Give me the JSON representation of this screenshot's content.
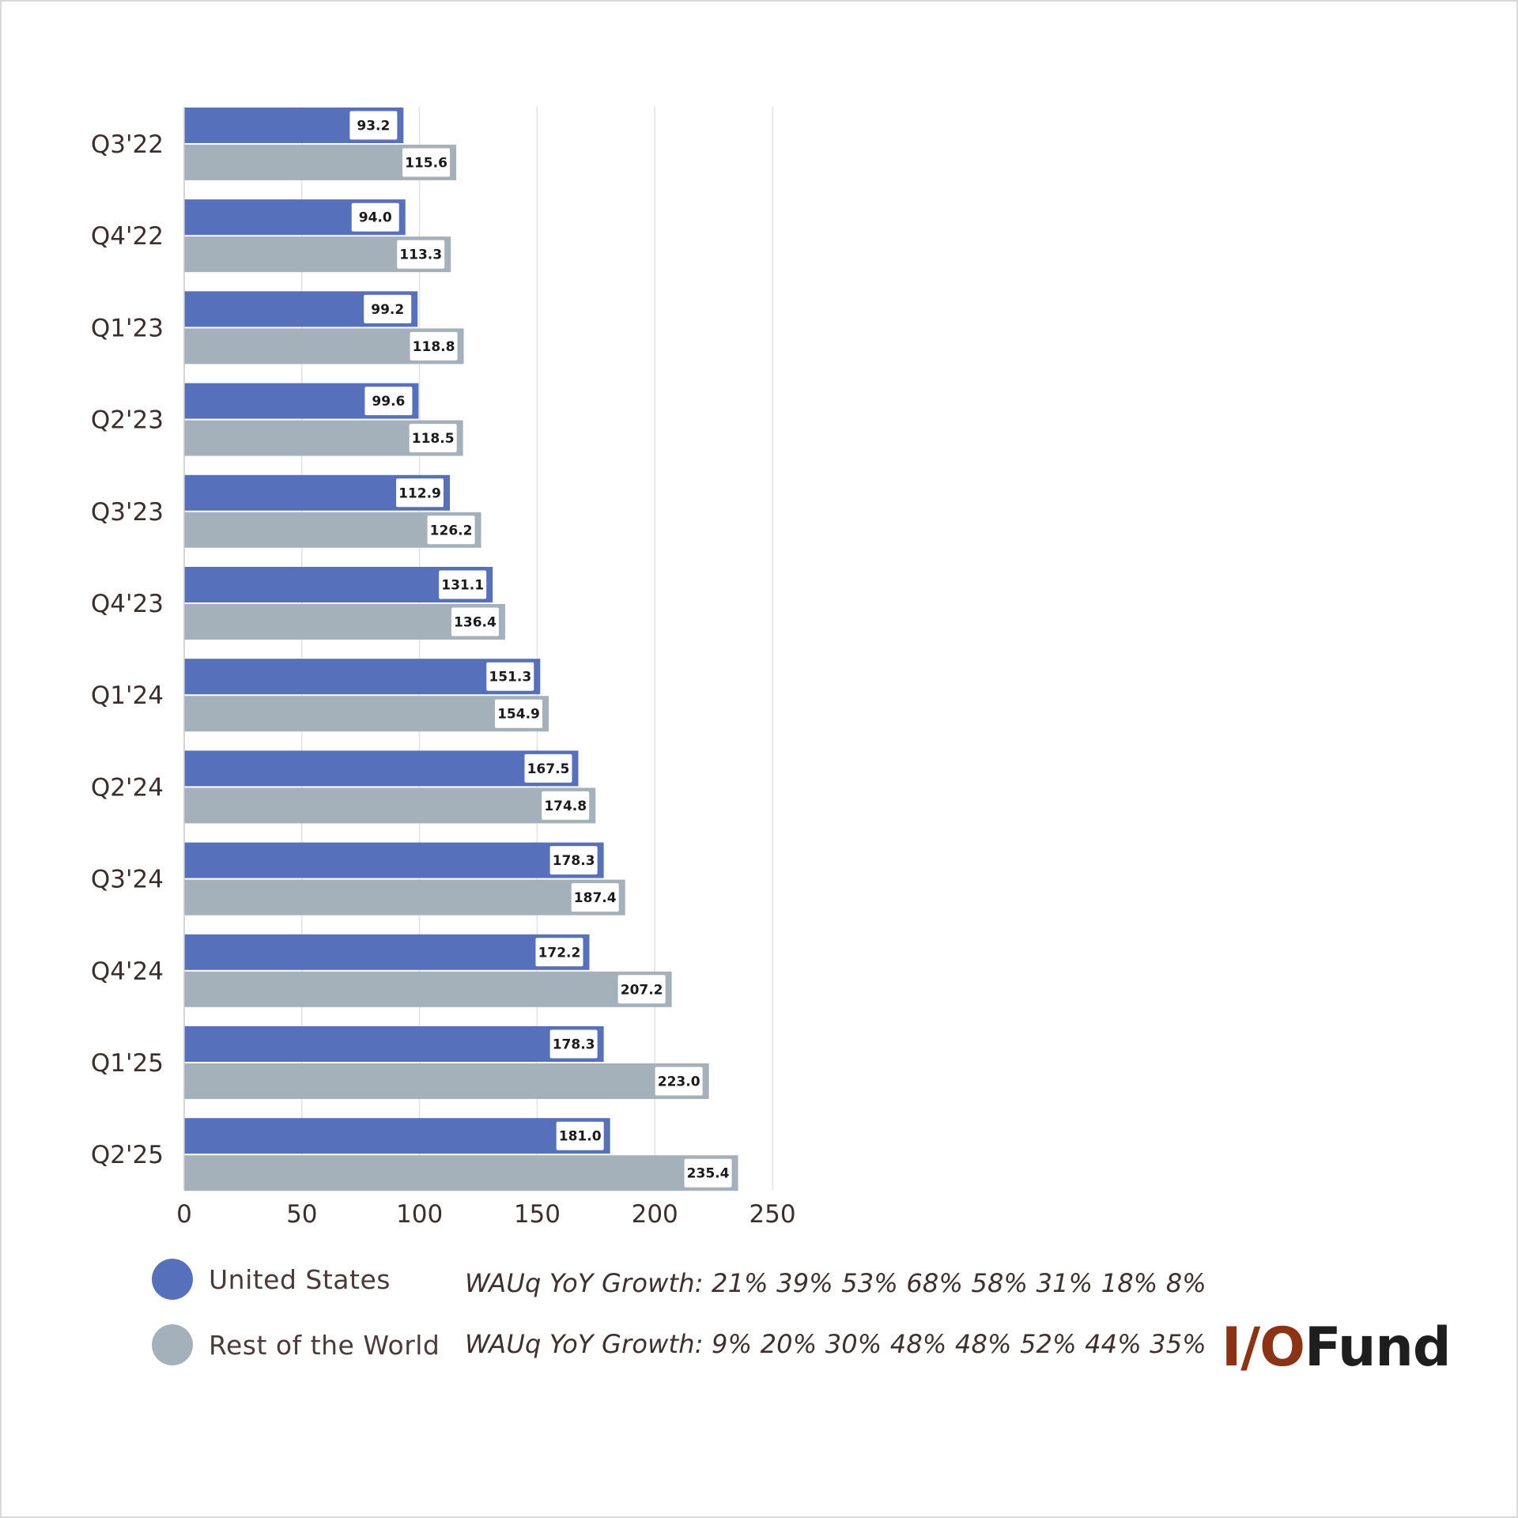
{
  "chart_data": {
    "type": "bar",
    "orientation": "horizontal",
    "categories": [
      "Q3'22",
      "Q4'22",
      "Q1'23",
      "Q2'23",
      "Q3'23",
      "Q4'23",
      "Q1'24",
      "Q2'24",
      "Q3'24",
      "Q4'24",
      "Q1'25",
      "Q2'25"
    ],
    "series": [
      {
        "name": "United States",
        "color": "#5670bb",
        "values": [
          93.2,
          94.0,
          99.2,
          99.6,
          112.9,
          131.1,
          151.3,
          167.5,
          178.3,
          172.2,
          178.3,
          181.0
        ],
        "labels": [
          "93.2",
          "94.0",
          "99.2",
          "99.6",
          "112.9",
          "131.1",
          "151.3",
          "167.5",
          "178.3",
          "172.2",
          "178.3",
          "181.0"
        ]
      },
      {
        "name": "Rest of the World",
        "color": "#a5b1ba",
        "values": [
          115.6,
          113.3,
          118.8,
          118.5,
          126.2,
          136.4,
          154.9,
          174.8,
          187.4,
          207.2,
          223.0,
          235.4
        ],
        "labels": [
          "115.6",
          "113.3",
          "118.8",
          "118.5",
          "126.2",
          "136.4",
          "154.9",
          "174.8",
          "187.4",
          "207.2",
          "223.0",
          "235.4"
        ]
      }
    ],
    "xlim": [
      0,
      250
    ],
    "x_ticks": [
      0,
      50,
      100,
      150,
      200,
      250
    ],
    "x_tick_labels": [
      "0",
      "50",
      "100",
      "150",
      "200",
      "250"
    ],
    "grid": "vertical",
    "legend_position": "bottom-left"
  },
  "legend": {
    "us_label": "United States",
    "row_label": "Rest of the World",
    "us_growth": "WAUq YoY Growth: 21% 39% 53% 68% 58% 31% 18% 8%",
    "row_growth": "WAUq YoY Growth: 9% 20% 30% 48% 48% 52% 44% 35%"
  },
  "logo": {
    "io": "I/O",
    "fund": "Fund"
  }
}
